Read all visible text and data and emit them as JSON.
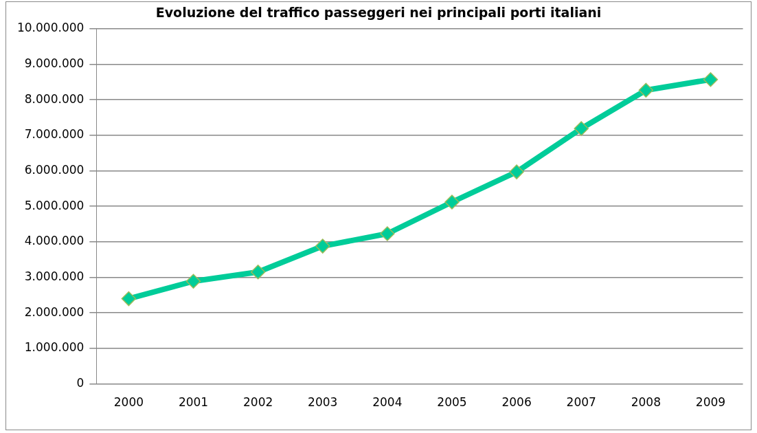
{
  "chart_data": {
    "type": "line",
    "title": "Evoluzione del traffico passeggeri nei principali porti italiani",
    "categories": [
      "2000",
      "2001",
      "2002",
      "2003",
      "2004",
      "2005",
      "2006",
      "2007",
      "2008",
      "2009"
    ],
    "series": [
      {
        "color": "#00cc99",
        "values": [
          2400000,
          2890000,
          3150000,
          3880000,
          4230000,
          5120000,
          5970000,
          7190000,
          8270000,
          8570000
        ]
      }
    ],
    "ylim": [
      0,
      10000000
    ],
    "yticks": [
      {
        "value": 0,
        "label": "0"
      },
      {
        "value": 1000000,
        "label": "1.000.000"
      },
      {
        "value": 2000000,
        "label": "2.000.000"
      },
      {
        "value": 3000000,
        "label": "3.000.000"
      },
      {
        "value": 4000000,
        "label": "4.000.000"
      },
      {
        "value": 5000000,
        "label": "5.000.000"
      },
      {
        "value": 6000000,
        "label": "6.000.000"
      },
      {
        "value": 7000000,
        "label": "7.000.000"
      },
      {
        "value": 8000000,
        "label": "8.000.000"
      },
      {
        "value": 9000000,
        "label": "9.000.000"
      },
      {
        "value": 10000000,
        "label": "10.000.000"
      }
    ],
    "grid": "y",
    "legend": false,
    "marker": "diamond",
    "line_style": "solid"
  }
}
